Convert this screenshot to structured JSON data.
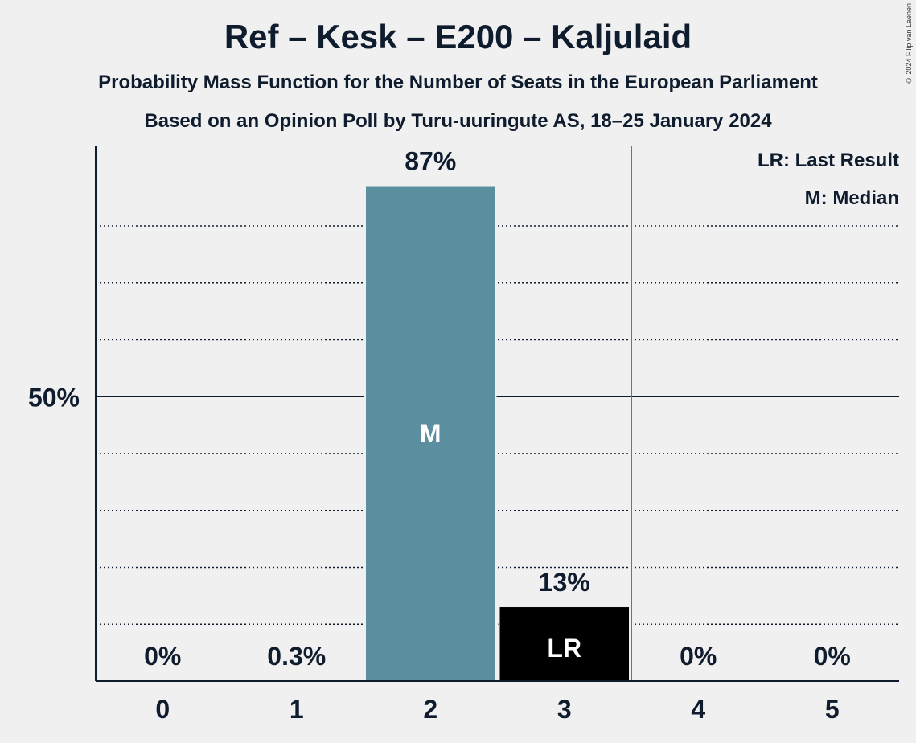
{
  "title": "Ref – Kesk – E200 – Kaljulaid",
  "subtitle1": "Probability Mass Function for the Number of Seats in the European Parliament",
  "subtitle2": "Based on an Opinion Poll by Turu-uuringute AS, 18–25 January 2024",
  "copyright": "© 2024 Filip van Laenen",
  "legend": {
    "last_result": "LR: Last Result",
    "median": "M: Median"
  },
  "colors": {
    "bar": "#5b8fa0",
    "last_result_bar": "#000000",
    "last_result_line": "#c85a17",
    "background": "#f0f0f0",
    "text": "#0f1c2e"
  },
  "chart_data": {
    "type": "bar",
    "categories": [
      "0",
      "1",
      "2",
      "3",
      "4",
      "5"
    ],
    "values": [
      0,
      0.3,
      87,
      13,
      0,
      0
    ],
    "value_labels": [
      "0%",
      "0.3%",
      "87%",
      "13%",
      "0%",
      "0%"
    ],
    "ylim": [
      0,
      94
    ],
    "y_tick_label": "50%",
    "y_tick_value": 50,
    "gridlines": [
      10,
      20,
      30,
      40,
      60,
      70,
      80
    ],
    "median_category": "2",
    "median_label": "M",
    "last_result_category": "3",
    "last_result_label": "LR",
    "last_result_line_after": "3"
  }
}
